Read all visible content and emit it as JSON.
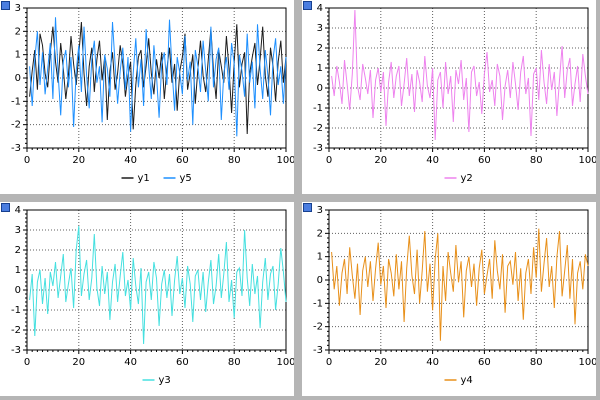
{
  "page": {
    "background": "#ffffff",
    "gutter_color": "#b5b5b5",
    "handle_color": "#4a7de0"
  },
  "chart_data": [
    {
      "type": "line",
      "title": "",
      "xlabel": "",
      "ylabel": "",
      "xlim": [
        0,
        100
      ],
      "ylim": [
        -3,
        3
      ],
      "x_ticks": [
        0,
        20,
        40,
        60,
        80,
        100
      ],
      "y_ticks": [
        -3,
        -2,
        -1,
        0,
        1,
        2,
        3
      ],
      "x_minor": 2,
      "y_minor": 0.2,
      "x_start": 1,
      "x_step": 1,
      "grid": true,
      "legend_position": "bottom",
      "series": [
        {
          "name": "y1",
          "color": "#1c1c1c",
          "values": [
            -0.8,
            0.3,
            1.2,
            -0.5,
            1.9,
            1.4,
            0.2,
            -0.4,
            1.1,
            2.2,
            0.7,
            -0.2,
            1.5,
            0.4,
            -0.9,
            0.1,
            1.8,
            0.6,
            -0.3,
            1.0,
            2.4,
            0.2,
            -1.2,
            0.5,
            1.3,
            -0.6,
            0.8,
            1.6,
            -0.1,
            0.9,
            -1.8,
            0.3,
            1.1,
            -0.5,
            0.2,
            1.4,
            0.6,
            -0.8,
            0.1,
            0.7,
            -2.2,
            -0.3,
            0.9,
            1.2,
            -0.4,
            0.5,
            1.7,
            0.2,
            -0.7,
            0.8,
            0.0,
            1.1,
            -0.9,
            0.4,
            1.3,
            -0.2,
            0.6,
            -1.4,
            0.3,
            0.9,
            1.9,
            -0.5,
            0.2,
            1.0,
            -1.1,
            0.4,
            1.6,
            0.1,
            -0.6,
            0.8,
            2.1,
            0.3,
            -0.9,
            1.2,
            0.5,
            -0.2,
            1.8,
            0.4,
            -1.5,
            0.7,
            2.3,
            -0.4,
            0.6,
            1.1,
            -2.4,
            0.2,
            0.9,
            1.5,
            -0.3,
            0.8,
            2.2,
            0.1,
            -0.8,
            1.3,
            0.5,
            -1.0,
            0.7,
            1.6,
            -0.2,
            0.9
          ]
        },
        {
          "name": "y5",
          "color": "#1e90ff",
          "values": [
            0.5,
            -1.2,
            0.8,
            2.0,
            -0.3,
            1.1,
            -0.7,
            0.4,
            1.5,
            -0.9,
            2.6,
            0.2,
            -1.6,
            0.7,
            1.2,
            -0.4,
            0.9,
            -2.1,
            0.3,
            1.4,
            -0.6,
            2.2,
            0.1,
            -1.3,
            0.8,
            1.6,
            -0.2,
            0.5,
            -1.9,
            1.0,
            0.4,
            -0.8,
            2.4,
            0.6,
            -1.1,
            0.3,
            1.3,
            -0.5,
            0.9,
            -2.3,
            0.2,
            1.7,
            -0.4,
            0.8,
            -1.2,
            2.1,
            0.5,
            -0.9,
            1.4,
            0.1,
            -1.7,
            0.6,
            1.1,
            -0.3,
            2.5,
            0.4,
            -1.4,
            0.9,
            0.2,
            -0.7,
            1.8,
            -0.1,
            0.7,
            -2.0,
            1.2,
            0.5,
            -0.6,
            1.6,
            0.3,
            -1.0,
            2.2,
            -0.4,
            0.8,
            1.3,
            -1.8,
            0.2,
            0.9,
            -0.5,
            1.5,
            0.6,
            -2.5,
            1.0,
            0.3,
            -0.8,
            1.9,
            -0.2,
            0.7,
            -1.3,
            2.3,
            0.4,
            -0.9,
            1.2,
            0.1,
            -1.6,
            0.8,
            1.7,
            -0.3,
            0.5,
            -1.1,
            0.9
          ]
        }
      ]
    },
    {
      "type": "line",
      "title": "",
      "xlabel": "",
      "ylabel": "",
      "xlim": [
        0,
        100
      ],
      "ylim": [
        -3,
        4
      ],
      "x_ticks": [
        0,
        20,
        40,
        60,
        80,
        100
      ],
      "y_ticks": [
        -3,
        -2,
        -1,
        0,
        1,
        2,
        3,
        4
      ],
      "x_minor": 2,
      "y_minor": 0.2,
      "x_start": 1,
      "x_step": 1,
      "grid": true,
      "legend_position": "bottom",
      "series": [
        {
          "name": "y2",
          "color": "#ee82ee",
          "values": [
            0.6,
            -0.4,
            1.1,
            0.3,
            -0.8,
            1.4,
            0.2,
            -1.1,
            0.7,
            3.9,
            0.1,
            -0.6,
            1.2,
            0.5,
            -0.3,
            0.9,
            -1.5,
            0.4,
            1.0,
            -0.2,
            0.8,
            -1.9,
            0.3,
            1.3,
            -0.5,
            0.6,
            1.1,
            -0.9,
            0.2,
            1.5,
            -0.4,
            0.7,
            -1.2,
            0.9,
            0.3,
            -0.7,
            1.6,
            0.1,
            -0.5,
            1.0,
            -2.6,
            0.4,
            0.8,
            -1.0,
            1.3,
            -0.3,
            0.6,
            -1.7,
            0.9,
            0.2,
            1.4,
            -0.6,
            0.5,
            -2.2,
            0.8,
            1.1,
            -0.4,
            0.3,
            -1.3,
            0.7,
            1.8,
            -0.2,
            0.4,
            -0.9,
            1.2,
            0.6,
            -1.6,
            0.1,
            0.9,
            -0.5,
            1.3,
            0.2,
            -1.1,
            0.8,
            1.6,
            -0.3,
            0.5,
            -2.4,
            0.7,
            1.0,
            -0.6,
            1.9,
            0.3,
            -0.8,
            1.2,
            -0.1,
            0.8,
            -1.4,
            0.4,
            2.1,
            -0.5,
            0.9,
            1.5,
            -0.9,
            0.2,
            1.1,
            -0.7,
            1.7,
            0.6,
            -0.3
          ]
        }
      ]
    },
    {
      "type": "line",
      "title": "",
      "xlabel": "",
      "ylabel": "",
      "xlim": [
        0,
        100
      ],
      "ylim": [
        -3,
        4
      ],
      "x_ticks": [
        0,
        20,
        40,
        60,
        80,
        100
      ],
      "y_ticks": [
        -3,
        -2,
        -1,
        0,
        1,
        2,
        3,
        4
      ],
      "x_minor": 2,
      "y_minor": 0.2,
      "x_start": 1,
      "x_step": 1,
      "grid": true,
      "legend_position": "bottom",
      "series": [
        {
          "name": "y3",
          "color": "#45e0e0",
          "values": [
            -0.5,
            0.8,
            -2.3,
            0.4,
            1.0,
            -0.7,
            0.6,
            -1.2,
            0.9,
            0.2,
            1.4,
            -0.4,
            0.7,
            1.8,
            -0.6,
            0.3,
            1.1,
            -0.9,
            2.0,
            3.2,
            -0.3,
            0.8,
            1.5,
            -0.5,
            0.6,
            2.8,
            0.1,
            -0.8,
            1.2,
            -0.2,
            0.9,
            -1.5,
            0.4,
            1.3,
            -0.6,
            0.7,
            1.9,
            -0.3,
            0.5,
            -1.0,
            1.6,
            0.2,
            -0.7,
            1.1,
            -2.7,
            0.4,
            0.9,
            -0.5,
            1.4,
            0.6,
            -1.8,
            0.3,
            1.0,
            -0.4,
            0.8,
            -1.3,
            0.5,
            1.7,
            -0.2,
            0.6,
            -0.9,
            1.2,
            0.3,
            -1.6,
            0.7,
            1.0,
            -0.5,
            0.9,
            -1.1,
            0.4,
            1.5,
            -0.7,
            0.2,
            1.8,
            -0.4,
            0.8,
            2.4,
            -0.6,
            0.5,
            -1.4,
            0.9,
            1.1,
            -0.3,
            3.0,
            0.6,
            -0.8,
            1.3,
            -0.2,
            0.7,
            -1.9,
            0.4,
            1.6,
            -0.5,
            0.8,
            1.2,
            -1.0,
            0.3,
            2.1,
            0.9,
            -0.6
          ]
        }
      ]
    },
    {
      "type": "line",
      "title": "",
      "xlabel": "",
      "ylabel": "",
      "xlim": [
        0,
        100
      ],
      "ylim": [
        -3,
        3
      ],
      "x_ticks": [
        0,
        20,
        40,
        60,
        80,
        100
      ],
      "y_ticks": [
        -3,
        -2,
        -1,
        0,
        1,
        2,
        3
      ],
      "x_minor": 2,
      "y_minor": 0.2,
      "x_start": 1,
      "x_step": 1,
      "grid": true,
      "legend_position": "bottom",
      "series": [
        {
          "name": "y4",
          "color": "#e8901a",
          "values": [
            1.2,
            -0.4,
            0.6,
            -1.1,
            0.3,
            0.9,
            -0.6,
            1.4,
            0.2,
            -0.8,
            0.7,
            -1.5,
            0.4,
            1.0,
            -0.3,
            0.8,
            -0.9,
            0.5,
            1.6,
            -0.2,
            0.6,
            -1.2,
            0.9,
            0.3,
            -0.7,
            1.1,
            -0.4,
            0.8,
            -1.8,
            0.5,
            1.9,
            0.2,
            -0.6,
            1.3,
            -1.0,
            0.4,
            2.1,
            -0.5,
            0.7,
            -1.3,
            0.9,
            2.0,
            -2.6,
            0.6,
            -0.9,
            1.2,
            0.3,
            -0.5,
            1.5,
            -0.1,
            0.8,
            -1.6,
            0.4,
            1.0,
            -0.3,
            0.7,
            -1.1,
            0.5,
            1.3,
            -0.6,
            0.2,
            0.9,
            -0.8,
            1.7,
            0.4,
            -0.4,
            1.1,
            -1.4,
            0.6,
            0.8,
            -0.2,
            1.2,
            -0.9,
            0.5,
            -1.7,
            0.3,
            0.9,
            -0.6,
            1.4,
            0.1,
            2.2,
            -0.5,
            0.7,
            1.8,
            -0.3,
            0.6,
            -1.2,
            1.0,
            2.1,
            -0.7,
            0.4,
            1.5,
            -0.8,
            0.9,
            -1.9,
            0.3,
            0.8,
            -0.4,
            1.1,
            0.6
          ]
        }
      ]
    }
  ]
}
